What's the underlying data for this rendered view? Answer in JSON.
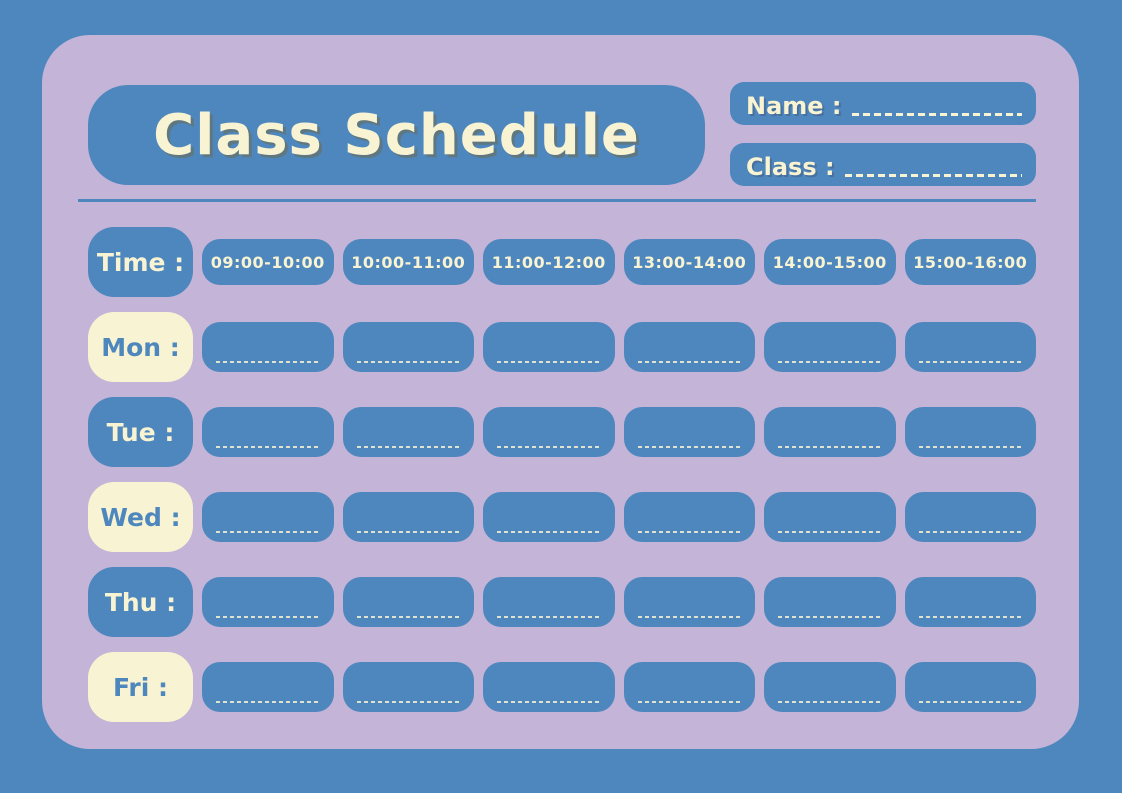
{
  "title": "Class Schedule",
  "header_fields": {
    "name_label": "Name :",
    "class_label": "Class :"
  },
  "schedule": {
    "time_label": "Time :",
    "time_slots": [
      "09:00-10:00",
      "10:00-11:00",
      "11:00-12:00",
      "13:00-14:00",
      "14:00-15:00",
      "15:00-16:00"
    ],
    "days": [
      {
        "label": "Mon :",
        "style": "cream"
      },
      {
        "label": "Tue :",
        "style": "blue"
      },
      {
        "label": "Wed :",
        "style": "cream"
      },
      {
        "label": "Thu :",
        "style": "blue"
      },
      {
        "label": "Fri :",
        "style": "cream"
      }
    ]
  },
  "colors": {
    "accent_blue": "#4E87BD",
    "card_purple": "#C3B4D8",
    "cream": "#F8F3D2"
  }
}
